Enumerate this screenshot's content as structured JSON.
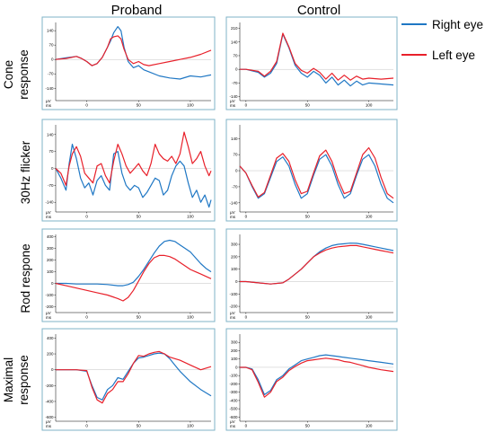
{
  "figure": {
    "columns": [
      "Proband",
      "Control"
    ],
    "rows": [
      [
        "Cone",
        "response"
      ],
      [
        "30Hz flicker"
      ],
      [
        "Rod respone"
      ],
      [
        "Maximal",
        "response"
      ]
    ],
    "legend": [
      {
        "label": "Right eye",
        "color": "#1f77c4"
      },
      {
        "label": "Left eye",
        "color": "#e8202a"
      }
    ],
    "unit_y": "μV",
    "unit_x": "ms"
  },
  "chart_data": [
    {
      "type": "line",
      "row": 0,
      "col": 0,
      "ylim": [
        -200,
        180
      ],
      "xlim": [
        -30,
        120
      ],
      "yticks": [
        140,
        70,
        0,
        -70,
        -140
      ],
      "xticks": [
        0,
        50,
        100
      ],
      "series": [
        {
          "color": "#1f77c4",
          "x": [
            -30,
            -20,
            -10,
            -5,
            0,
            5,
            10,
            15,
            20,
            23,
            26,
            30,
            33,
            36,
            40,
            45,
            50,
            55,
            60,
            70,
            80,
            90,
            100,
            110,
            120
          ],
          "y": [
            0,
            8,
            15,
            5,
            -10,
            -30,
            -20,
            10,
            60,
            90,
            130,
            160,
            140,
            60,
            -10,
            -40,
            -30,
            -50,
            -60,
            -80,
            -90,
            -95,
            -80,
            -85,
            -75
          ]
        },
        {
          "color": "#e8202a",
          "x": [
            -30,
            -20,
            -10,
            -5,
            0,
            5,
            10,
            15,
            20,
            23,
            26,
            30,
            33,
            36,
            40,
            45,
            50,
            55,
            60,
            70,
            80,
            90,
            100,
            110,
            120
          ],
          "y": [
            0,
            5,
            15,
            5,
            -10,
            -30,
            -20,
            10,
            60,
            100,
            110,
            115,
            100,
            50,
            0,
            -20,
            -10,
            -25,
            -30,
            -20,
            -10,
            0,
            10,
            25,
            45
          ]
        }
      ]
    },
    {
      "type": "line",
      "row": 0,
      "col": 1,
      "ylim": [
        -160,
        240
      ],
      "xlim": [
        -5,
        120
      ],
      "yticks": [
        210,
        140,
        70,
        0,
        -70,
        -140
      ],
      "xticks": [
        0,
        50,
        100
      ],
      "series": [
        {
          "color": "#1f77c4",
          "x": [
            -5,
            0,
            10,
            15,
            20,
            25,
            30,
            35,
            40,
            45,
            50,
            55,
            60,
            65,
            70,
            75,
            80,
            85,
            90,
            95,
            100,
            110,
            120
          ],
          "y": [
            0,
            0,
            -15,
            -40,
            -20,
            30,
            180,
            110,
            20,
            -20,
            -40,
            -10,
            -30,
            -70,
            -40,
            -80,
            -55,
            -85,
            -60,
            -80,
            -70,
            -75,
            -80
          ]
        },
        {
          "color": "#e8202a",
          "x": [
            -5,
            0,
            10,
            15,
            20,
            25,
            30,
            35,
            40,
            45,
            50,
            55,
            60,
            65,
            70,
            75,
            80,
            85,
            90,
            95,
            100,
            110,
            120
          ],
          "y": [
            0,
            0,
            -10,
            -35,
            -10,
            40,
            185,
            115,
            30,
            -5,
            -20,
            5,
            -15,
            -50,
            -20,
            -55,
            -30,
            -55,
            -35,
            -50,
            -45,
            -50,
            -45
          ]
        }
      ]
    },
    {
      "type": "line",
      "row": 1,
      "col": 0,
      "ylim": [
        -180,
        180
      ],
      "xlim": [
        -30,
        120
      ],
      "yticks": [
        140,
        70,
        0,
        -70,
        -140
      ],
      "xticks": [
        0,
        50,
        100
      ],
      "series": [
        {
          "color": "#1f77c4",
          "x": [
            -30,
            -25,
            -20,
            -17,
            -14,
            -10,
            -6,
            -2,
            2,
            6,
            10,
            14,
            18,
            22,
            26,
            30,
            34,
            38,
            42,
            46,
            50,
            54,
            58,
            62,
            66,
            70,
            74,
            78,
            82,
            86,
            90,
            94,
            98,
            102,
            106,
            110,
            114,
            118,
            120
          ],
          "y": [
            0,
            -40,
            -90,
            20,
            100,
            40,
            -40,
            -80,
            -60,
            -110,
            -50,
            -30,
            -70,
            -90,
            60,
            70,
            -20,
            -70,
            -90,
            -70,
            -80,
            -120,
            -100,
            -70,
            -40,
            -50,
            -110,
            -90,
            -30,
            10,
            30,
            10,
            -60,
            -120,
            -90,
            -140,
            -110,
            -160,
            -130
          ]
        },
        {
          "color": "#e8202a",
          "x": [
            -30,
            -25,
            -20,
            -17,
            -14,
            -10,
            -6,
            -2,
            2,
            6,
            10,
            14,
            18,
            22,
            26,
            30,
            34,
            38,
            42,
            46,
            50,
            54,
            58,
            62,
            66,
            70,
            74,
            78,
            82,
            86,
            90,
            94,
            98,
            102,
            106,
            110,
            114,
            118,
            120
          ],
          "y": [
            0,
            -20,
            -70,
            10,
            60,
            90,
            50,
            -20,
            -40,
            -60,
            10,
            20,
            -30,
            -60,
            30,
            100,
            60,
            10,
            -20,
            0,
            20,
            -10,
            -30,
            20,
            100,
            60,
            40,
            30,
            50,
            20,
            60,
            150,
            90,
            20,
            40,
            70,
            10,
            -30,
            -10
          ]
        }
      ]
    },
    {
      "type": "line",
      "row": 1,
      "col": 1,
      "ylim": [
        -180,
        200
      ],
      "xlim": [
        -5,
        120
      ],
      "yticks": [
        140,
        70,
        0,
        -70,
        -140
      ],
      "xticks": [
        0,
        50,
        100
      ],
      "series": [
        {
          "color": "#1f77c4",
          "x": [
            -5,
            0,
            5,
            10,
            15,
            20,
            25,
            30,
            35,
            40,
            45,
            50,
            55,
            60,
            65,
            70,
            75,
            80,
            85,
            90,
            95,
            100,
            105,
            110,
            115,
            120
          ],
          "y": [
            20,
            -10,
            -70,
            -120,
            -100,
            -30,
            40,
            60,
            20,
            -60,
            -120,
            -100,
            -20,
            50,
            70,
            20,
            -60,
            -120,
            -100,
            -20,
            50,
            70,
            20,
            -60,
            -120,
            -140
          ]
        },
        {
          "color": "#e8202a",
          "x": [
            -5,
            0,
            5,
            10,
            15,
            20,
            25,
            30,
            35,
            40,
            45,
            50,
            55,
            60,
            65,
            70,
            75,
            80,
            85,
            90,
            95,
            100,
            105,
            110,
            115,
            120
          ],
          "y": [
            20,
            -10,
            -65,
            -115,
            -95,
            -20,
            55,
            75,
            40,
            -40,
            -100,
            -90,
            -10,
            65,
            90,
            40,
            -40,
            -100,
            -90,
            -10,
            70,
            100,
            55,
            -30,
            -100,
            -120
          ]
        }
      ]
    },
    {
      "type": "line",
      "row": 2,
      "col": 0,
      "ylim": [
        -250,
        420
      ],
      "xlim": [
        -30,
        120
      ],
      "yticks": [
        400,
        300,
        200,
        100,
        0,
        -100,
        -200
      ],
      "xticks": [
        0,
        50,
        100
      ],
      "series": [
        {
          "color": "#1f77c4",
          "x": [
            -30,
            -20,
            -10,
            0,
            10,
            20,
            30,
            35,
            40,
            45,
            50,
            55,
            60,
            65,
            70,
            75,
            80,
            85,
            90,
            95,
            100,
            105,
            110,
            115,
            120
          ],
          "y": [
            0,
            0,
            -5,
            -5,
            -5,
            -10,
            -20,
            -20,
            -10,
            10,
            60,
            120,
            190,
            260,
            320,
            360,
            370,
            360,
            330,
            300,
            270,
            220,
            170,
            130,
            100
          ]
        },
        {
          "color": "#e8202a",
          "x": [
            -30,
            -20,
            -10,
            0,
            10,
            20,
            30,
            35,
            40,
            45,
            50,
            55,
            60,
            65,
            70,
            75,
            80,
            85,
            90,
            95,
            100,
            105,
            110,
            115,
            120
          ],
          "y": [
            0,
            -20,
            -40,
            -60,
            -80,
            -100,
            -130,
            -150,
            -120,
            -60,
            20,
            100,
            170,
            220,
            240,
            240,
            230,
            210,
            180,
            150,
            120,
            100,
            80,
            60,
            40
          ]
        }
      ]
    },
    {
      "type": "line",
      "row": 2,
      "col": 1,
      "ylim": [
        -250,
        380
      ],
      "xlim": [
        -5,
        120
      ],
      "yticks": [
        300,
        200,
        100,
        0,
        -100,
        -200
      ],
      "xticks": [
        0,
        50,
        100
      ],
      "series": [
        {
          "color": "#1f77c4",
          "x": [
            -5,
            0,
            10,
            20,
            30,
            35,
            40,
            45,
            50,
            55,
            60,
            65,
            70,
            75,
            80,
            85,
            90,
            95,
            100,
            105,
            110,
            115,
            120
          ],
          "y": [
            0,
            0,
            -10,
            -20,
            -10,
            20,
            60,
            100,
            150,
            200,
            240,
            270,
            290,
            300,
            305,
            310,
            308,
            300,
            290,
            280,
            270,
            260,
            250
          ]
        },
        {
          "color": "#e8202a",
          "x": [
            -5,
            0,
            10,
            20,
            30,
            35,
            40,
            45,
            50,
            55,
            60,
            65,
            70,
            75,
            80,
            85,
            90,
            95,
            100,
            105,
            110,
            115,
            120
          ],
          "y": [
            0,
            0,
            -10,
            -20,
            -10,
            20,
            60,
            100,
            150,
            200,
            230,
            255,
            270,
            280,
            285,
            290,
            290,
            280,
            270,
            260,
            250,
            240,
            230
          ]
        }
      ]
    },
    {
      "type": "line",
      "row": 3,
      "col": 0,
      "ylim": [
        -650,
        450
      ],
      "xlim": [
        -30,
        120
      ],
      "yticks": [
        400,
        200,
        0,
        -200,
        -400,
        -600
      ],
      "xticks": [
        0,
        50,
        100
      ],
      "series": [
        {
          "color": "#1f77c4",
          "x": [
            -30,
            -20,
            -10,
            0,
            5,
            10,
            15,
            20,
            25,
            30,
            35,
            40,
            45,
            50,
            55,
            60,
            65,
            70,
            75,
            80,
            85,
            90,
            100,
            110,
            120
          ],
          "y": [
            0,
            0,
            0,
            -20,
            -200,
            -350,
            -380,
            -250,
            -200,
            -100,
            -120,
            -20,
            80,
            150,
            160,
            180,
            200,
            210,
            200,
            140,
            60,
            -20,
            -150,
            -250,
            -330
          ]
        },
        {
          "color": "#e8202a",
          "x": [
            -30,
            -20,
            -10,
            0,
            5,
            10,
            15,
            20,
            25,
            30,
            35,
            40,
            45,
            50,
            55,
            60,
            65,
            70,
            75,
            80,
            85,
            90,
            100,
            110,
            120
          ],
          "y": [
            0,
            0,
            0,
            -10,
            -220,
            -380,
            -420,
            -300,
            -250,
            -150,
            -150,
            -50,
            80,
            180,
            170,
            200,
            220,
            230,
            200,
            160,
            140,
            120,
            60,
            0,
            40
          ]
        }
      ]
    },
    {
      "type": "line",
      "row": 3,
      "col": 1,
      "ylim": [
        -650,
        400
      ],
      "xlim": [
        -5,
        120
      ],
      "yticks": [
        300,
        200,
        100,
        0,
        -100,
        -200,
        -300,
        -400,
        -500,
        -600
      ],
      "xticks": [
        0,
        50,
        100
      ],
      "series": [
        {
          "color": "#1f77c4",
          "x": [
            -5,
            0,
            5,
            10,
            15,
            20,
            25,
            30,
            35,
            40,
            45,
            50,
            55,
            60,
            65,
            70,
            75,
            80,
            85,
            90,
            95,
            100,
            110,
            120
          ],
          "y": [
            0,
            0,
            -20,
            -150,
            -330,
            -280,
            -150,
            -100,
            -20,
            30,
            80,
            100,
            120,
            140,
            150,
            140,
            130,
            120,
            110,
            100,
            90,
            80,
            60,
            40
          ]
        },
        {
          "color": "#e8202a",
          "x": [
            -5,
            0,
            5,
            10,
            15,
            20,
            25,
            30,
            35,
            40,
            45,
            50,
            55,
            60,
            65,
            70,
            75,
            80,
            85,
            90,
            95,
            100,
            110,
            120
          ],
          "y": [
            0,
            0,
            -30,
            -180,
            -360,
            -300,
            -170,
            -120,
            -40,
            10,
            50,
            80,
            90,
            100,
            110,
            100,
            90,
            70,
            60,
            40,
            20,
            0,
            -30,
            -50
          ]
        }
      ]
    }
  ]
}
